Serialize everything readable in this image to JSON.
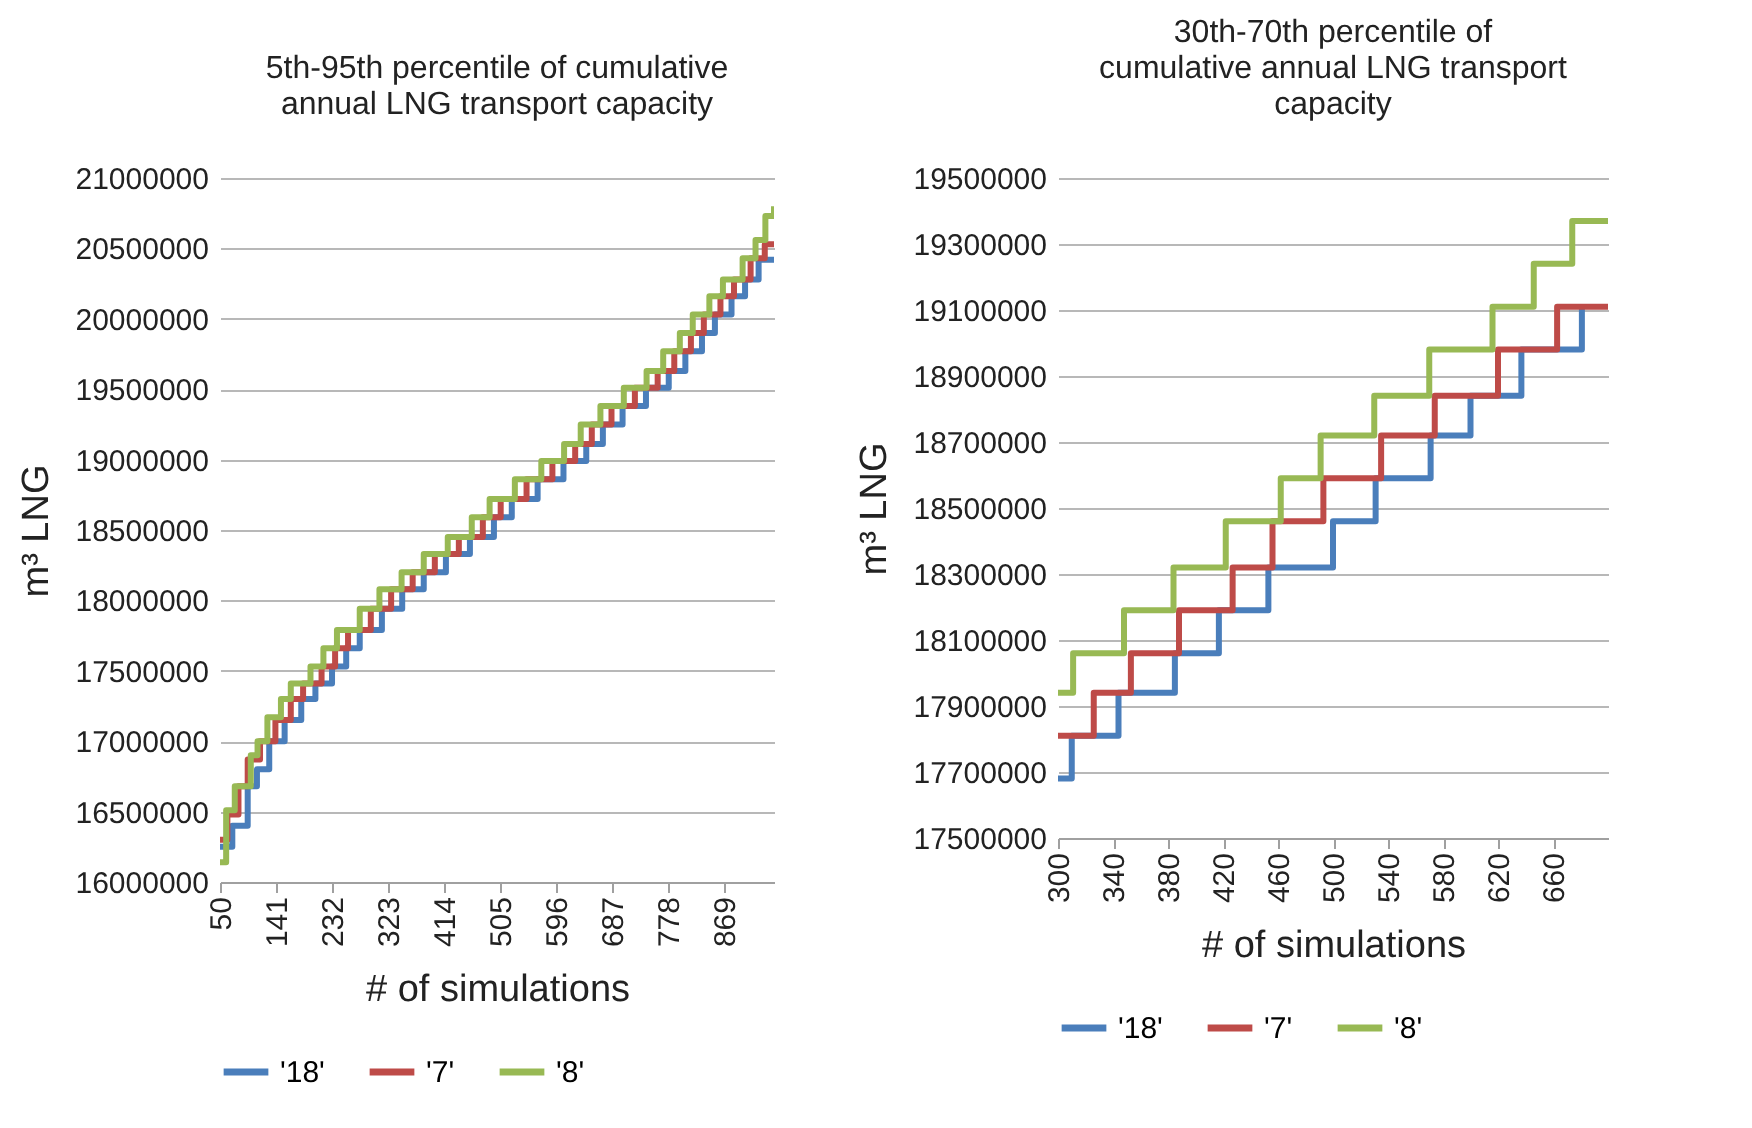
{
  "chart_data": [
    {
      "type": "step",
      "title": "5th-95th percentile of cumulative annual LNG transport capacity",
      "xlabel": "# of simulations",
      "ylabel": "m³ LNG",
      "xlim": [
        50,
        950
      ],
      "xticks": [
        50,
        141,
        232,
        323,
        414,
        505,
        596,
        687,
        778,
        869
      ],
      "ylim": [
        16000000,
        21000000
      ],
      "yticks": [
        16000000,
        16500000,
        17000000,
        17500000,
        18000000,
        18500000,
        19000000,
        19500000,
        20000000,
        20500000,
        21000000
      ],
      "grid": "y",
      "legend": "bottom",
      "series": [
        {
          "name": "'18'",
          "color": "#4a7ebb",
          "x": [
            50,
            70,
            95,
            110,
            130,
            155,
            182,
            205,
            232,
            255,
            277,
            313,
            346,
            381,
            417,
            456,
            495,
            524,
            566,
            608,
            645,
            672,
            704,
            742,
            779,
            806,
            833,
            854,
            881,
            903,
            925,
            950
          ],
          "values": [
            16250000,
            16400000,
            16680000,
            16800000,
            17000000,
            17150000,
            17300000,
            17410000,
            17530000,
            17660000,
            17790000,
            17940000,
            18080000,
            18200000,
            18330000,
            18450000,
            18590000,
            18720000,
            18860000,
            18990000,
            19110000,
            19250000,
            19380000,
            19510000,
            19630000,
            19770000,
            19900000,
            20030000,
            20160000,
            20280000,
            20420000,
            20420000
          ]
        },
        {
          "name": "'7'",
          "color": "#be4b48",
          "x": [
            50,
            62,
            80,
            95,
            115,
            140,
            165,
            185,
            215,
            237,
            258,
            295,
            328,
            363,
            399,
            438,
            477,
            506,
            548,
            590,
            627,
            654,
            686,
            724,
            761,
            788,
            815,
            836,
            863,
            885,
            912,
            935,
            950
          ],
          "values": [
            16300000,
            16480000,
            16680000,
            16870000,
            17000000,
            17150000,
            17300000,
            17410000,
            17530000,
            17660000,
            17790000,
            17940000,
            18080000,
            18200000,
            18330000,
            18450000,
            18590000,
            18720000,
            18860000,
            18990000,
            19110000,
            19250000,
            19380000,
            19510000,
            19630000,
            19770000,
            19900000,
            20030000,
            20160000,
            20280000,
            20430000,
            20530000,
            20530000
          ]
        },
        {
          "name": "'8'",
          "color": "#98b954",
          "x": [
            50,
            60,
            74,
            100,
            111,
            127,
            149,
            165,
            197,
            218,
            240,
            277,
            309,
            345,
            381,
            420,
            459,
            488,
            529,
            572,
            609,
            636,
            668,
            706,
            743,
            770,
            797,
            818,
            845,
            867,
            899,
            920,
            936,
            950
          ],
          "values": [
            16140000,
            16510000,
            16680000,
            16900000,
            17000000,
            17170000,
            17300000,
            17410000,
            17530000,
            17660000,
            17790000,
            17940000,
            18080000,
            18200000,
            18330000,
            18450000,
            18590000,
            18720000,
            18860000,
            18990000,
            19110000,
            19250000,
            19380000,
            19510000,
            19630000,
            19770000,
            19900000,
            20030000,
            20160000,
            20280000,
            20430000,
            20560000,
            20730000,
            20800000
          ]
        }
      ]
    },
    {
      "type": "step",
      "title": "30th-70th percentile of cumulative annual LNG transport capacity",
      "xlabel": "# of simulations",
      "ylabel": "m³ LNG",
      "xlim": [
        300,
        700
      ],
      "xticks": [
        300,
        340,
        380,
        420,
        460,
        500,
        540,
        580,
        620,
        660
      ],
      "ylim": [
        17500000,
        19500000
      ],
      "yticks": [
        17500000,
        17700000,
        17900000,
        18100000,
        18300000,
        18500000,
        18700000,
        18900000,
        19100000,
        19300000,
        19500000
      ],
      "grid": "y",
      "legend": "bottom",
      "series": [
        {
          "name": "'18'",
          "color": "#4a7ebb",
          "x": [
            300,
            310,
            344,
            385,
            417,
            453,
            500,
            531,
            571,
            600,
            637,
            681
          ],
          "values": [
            17680000,
            17810000,
            17940000,
            18060000,
            18190000,
            18320000,
            18460000,
            18590000,
            18720000,
            18840000,
            18980000,
            19110000
          ]
        },
        {
          "name": "'7'",
          "color": "#be4b48",
          "x": [
            300,
            326,
            353,
            388,
            427,
            456,
            493,
            535,
            574,
            620,
            663,
            700
          ],
          "values": [
            17810000,
            17940000,
            18060000,
            18190000,
            18320000,
            18460000,
            18590000,
            18720000,
            18840000,
            18980000,
            19110000,
            19110000
          ]
        },
        {
          "name": "'8'",
          "color": "#98b954",
          "x": [
            300,
            311,
            348,
            384,
            422,
            462,
            491,
            530,
            570,
            616,
            646,
            674,
            700
          ],
          "values": [
            17940000,
            18060000,
            18190000,
            18320000,
            18460000,
            18590000,
            18720000,
            18840000,
            18980000,
            19110000,
            19240000,
            19370000,
            19370000
          ]
        }
      ]
    }
  ]
}
